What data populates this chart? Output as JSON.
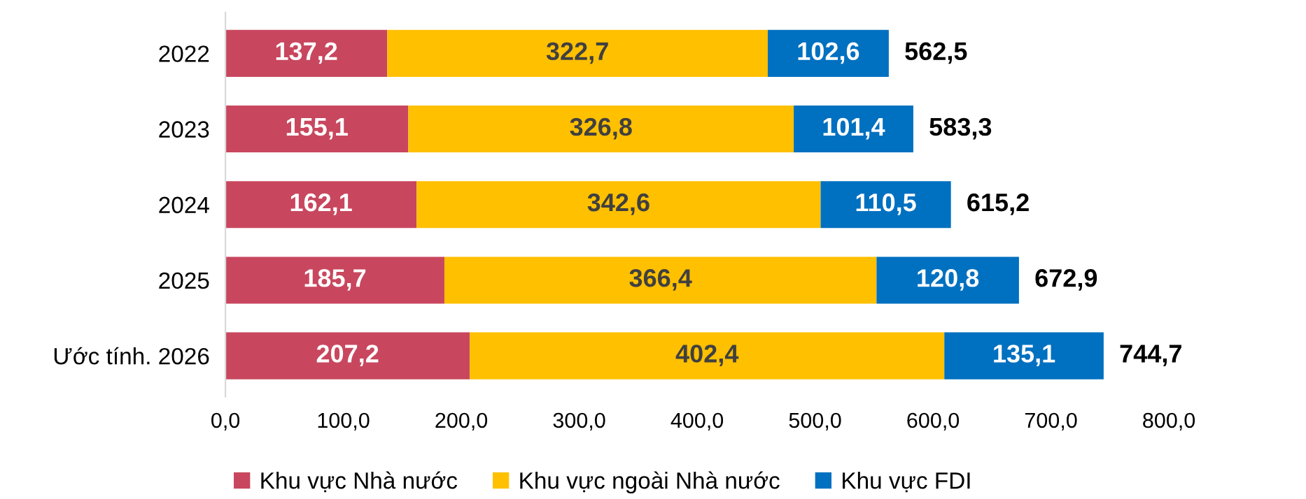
{
  "chart_data": {
    "type": "bar",
    "orientation": "horizontal",
    "stacked": true,
    "categories": [
      "2022",
      "2023",
      "2024",
      "2025",
      "Ước tính. 2026"
    ],
    "series": [
      {
        "name": "Khu vực Nhà nước",
        "color": "#c8475e",
        "values": [
          137.2,
          155.1,
          162.1,
          185.7,
          207.2
        ],
        "value_labels": [
          "137,2",
          "155,1",
          "162,1",
          "185,7",
          "207,2"
        ]
      },
      {
        "name": "Khu vực ngoài Nhà nước",
        "color": "#ffc000",
        "values": [
          322.7,
          326.8,
          342.6,
          366.4,
          402.4
        ],
        "value_labels": [
          "322,7",
          "326,8",
          "342,6",
          "366,4",
          "402,4"
        ]
      },
      {
        "name": "Khu vực FDI",
        "color": "#0070c0",
        "values": [
          102.6,
          101.4,
          110.5,
          120.8,
          135.1
        ],
        "value_labels": [
          "102,6",
          "101,4",
          "110,5",
          "120,8",
          "135,1"
        ]
      }
    ],
    "totals": [
      "562,5",
      "583,3",
      "615,2",
      "672,9",
      "744,7"
    ],
    "xlim": [
      0,
      800
    ],
    "xticks": [
      {
        "value": 0,
        "label": "0,0"
      },
      {
        "value": 100,
        "label": "100,0"
      },
      {
        "value": 200,
        "label": "200,0"
      },
      {
        "value": 300,
        "label": "300,0"
      },
      {
        "value": 400,
        "label": "400,0"
      },
      {
        "value": 500,
        "label": "500,0"
      },
      {
        "value": 600,
        "label": "600,0"
      },
      {
        "value": 700,
        "label": "700,0"
      },
      {
        "value": 800,
        "label": "800,0"
      }
    ],
    "grid": false,
    "legend": "bottom"
  }
}
